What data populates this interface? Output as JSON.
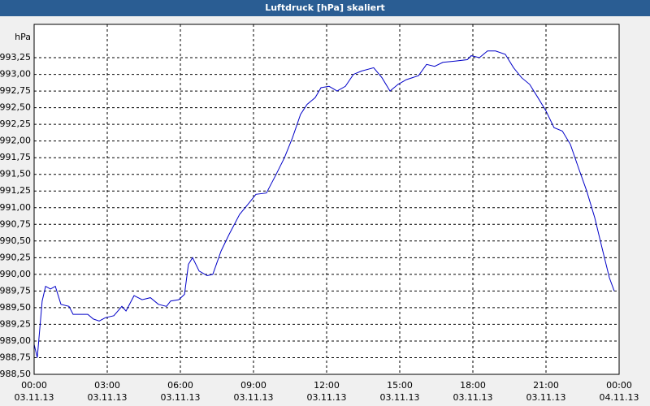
{
  "chart_data": {
    "type": "line",
    "title": "Luftdruck [hPa] skaliert",
    "y_label": "hPa",
    "color": "#0000c8",
    "grid": true,
    "x": [
      0,
      0.13,
      0.33,
      0.47,
      0.67,
      0.87,
      1.1,
      1.43,
      1.6,
      2.2,
      2.43,
      2.67,
      2.93,
      3.27,
      3.6,
      3.77,
      4.1,
      4.43,
      4.77,
      5.1,
      5.43,
      5.6,
      5.93,
      6.17,
      6.33,
      6.5,
      6.77,
      7.1,
      7.33,
      7.67,
      8.0,
      8.43,
      8.77,
      9.1,
      9.53,
      9.93,
      10.27,
      10.6,
      10.93,
      11.2,
      11.53,
      11.77,
      12.1,
      12.43,
      12.77,
      13.1,
      13.43,
      13.93,
      14.27,
      14.6,
      14.93,
      15.27,
      15.77,
      16.1,
      16.43,
      16.77,
      17.27,
      17.77,
      17.93,
      18.27,
      18.6,
      18.93,
      19.33,
      19.67,
      20.0,
      20.33,
      20.67,
      21.0,
      21.33,
      21.67,
      22.0,
      22.33,
      22.67,
      23.0,
      23.33,
      23.6,
      23.8
    ],
    "values": [
      988.95,
      988.75,
      989.6,
      989.82,
      989.78,
      989.82,
      989.55,
      989.52,
      989.4,
      989.4,
      989.33,
      989.3,
      989.35,
      989.38,
      989.52,
      989.45,
      989.68,
      989.62,
      989.65,
      989.55,
      989.52,
      989.6,
      989.62,
      989.7,
      990.15,
      990.25,
      990.05,
      989.98,
      990.0,
      990.35,
      990.6,
      990.9,
      991.05,
      991.2,
      991.22,
      991.5,
      991.75,
      992.05,
      992.4,
      992.55,
      992.65,
      992.8,
      992.82,
      992.75,
      992.82,
      993.0,
      993.05,
      993.1,
      992.95,
      992.75,
      992.85,
      992.92,
      992.98,
      993.15,
      993.12,
      993.18,
      993.2,
      993.22,
      993.28,
      993.25,
      993.35,
      993.35,
      993.3,
      993.1,
      992.95,
      992.85,
      992.65,
      992.45,
      992.2,
      992.15,
      991.95,
      991.6,
      991.25,
      990.85,
      990.35,
      989.95,
      989.75
    ],
    "xlim": [
      0,
      24
    ],
    "xticks": [
      {
        "value": 0,
        "label": "00:00",
        "date": "03.11.13"
      },
      {
        "value": 3,
        "label": "03:00",
        "date": "03.11.13"
      },
      {
        "value": 6,
        "label": "06:00",
        "date": "03.11.13"
      },
      {
        "value": 9,
        "label": "09:00",
        "date": "03.11.13"
      },
      {
        "value": 12,
        "label": "12:00",
        "date": "03.11.13"
      },
      {
        "value": 15,
        "label": "15:00",
        "date": "03.11.13"
      },
      {
        "value": 18,
        "label": "18:00",
        "date": "03.11.13"
      },
      {
        "value": 21,
        "label": "21:00",
        "date": "03.11.13"
      },
      {
        "value": 24,
        "label": "00:00",
        "date": "04.11.13"
      }
    ],
    "ylim": [
      988.5,
      993.75
    ],
    "yticks": [
      {
        "value": 988.5,
        "label": "988,50"
      },
      {
        "value": 988.75,
        "label": "988,75"
      },
      {
        "value": 989.0,
        "label": "989,00"
      },
      {
        "value": 989.25,
        "label": "989,25"
      },
      {
        "value": 989.5,
        "label": "989,50"
      },
      {
        "value": 989.75,
        "label": "989,75"
      },
      {
        "value": 990.0,
        "label": "990,00"
      },
      {
        "value": 990.25,
        "label": "990,25"
      },
      {
        "value": 990.5,
        "label": "990,50"
      },
      {
        "value": 990.75,
        "label": "990,75"
      },
      {
        "value": 991.0,
        "label": "991,00"
      },
      {
        "value": 991.25,
        "label": "991,25"
      },
      {
        "value": 991.5,
        "label": "991,50"
      },
      {
        "value": 991.75,
        "label": "991,75"
      },
      {
        "value": 992.0,
        "label": "992,00"
      },
      {
        "value": 992.25,
        "label": "992,25"
      },
      {
        "value": 992.5,
        "label": "992,50"
      },
      {
        "value": 992.75,
        "label": "992,75"
      },
      {
        "value": 993.0,
        "label": "993,00"
      },
      {
        "value": 993.25,
        "label": "993,25"
      }
    ]
  }
}
